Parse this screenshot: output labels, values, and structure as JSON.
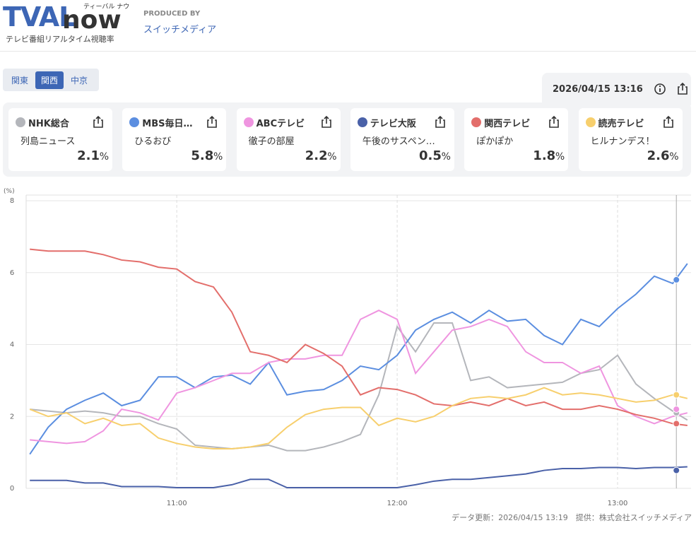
{
  "header": {
    "logo_main": "TVAL",
    "logo_sub": "now",
    "logo_kana": "ティーバル ナウ",
    "tagline": "テレビ番組リアルタイム視聴率",
    "produced_by": "PRODUCED BY",
    "producer": "スイッチメディア"
  },
  "tabs": [
    "関東",
    "関西",
    "中京"
  ],
  "timestamp": "2026/04/15 13:16",
  "cards": [
    {
      "program": "列島ニュース",
      "rating": 2.1,
      "unit": "%"
    },
    {
      "program": "ひるおび",
      "rating": 5.8,
      "unit": "%"
    },
    {
      "program": "徹子の部屋",
      "rating": 2.2,
      "unit": "%"
    },
    {
      "program": "午後のサスペン…",
      "rating": 0.5,
      "unit": "%"
    },
    {
      "program": "ぽかぽか",
      "rating": 1.8,
      "unit": "%"
    },
    {
      "program": "ヒルナンデス！",
      "rating": 2.6,
      "unit": "%"
    }
  ],
  "chart_data": {
    "type": "line",
    "y_label": "(%)",
    "x": [
      "10:20",
      "10:25",
      "10:30",
      "10:35",
      "10:40",
      "10:45",
      "10:50",
      "10:55",
      "11:00",
      "11:05",
      "11:10",
      "11:15",
      "11:20",
      "11:25",
      "11:30",
      "11:35",
      "11:40",
      "11:45",
      "11:50",
      "11:55",
      "12:00",
      "12:05",
      "12:10",
      "12:15",
      "12:20",
      "12:25",
      "12:30",
      "12:35",
      "12:40",
      "12:45",
      "12:50",
      "12:55",
      "13:00",
      "13:05",
      "13:10",
      "13:15",
      "13:19"
    ],
    "xlim": [
      "10:19",
      "13:20"
    ],
    "xticks": [
      "11:00",
      "12:00",
      "13:00"
    ],
    "ylim": [
      0,
      8
    ],
    "yticks": [
      0,
      2,
      4,
      6,
      8
    ],
    "grid": true,
    "series": [
      {
        "name": "NHK総合",
        "color": "#b4b6bb",
        "values": [
          2.2,
          2.15,
          2.1,
          2.15,
          2.1,
          2.0,
          2.0,
          1.8,
          1.65,
          1.2,
          1.15,
          1.1,
          1.15,
          1.2,
          1.05,
          1.05,
          1.15,
          1.3,
          1.5,
          2.6,
          4.5,
          3.8,
          4.6,
          4.6,
          3.0,
          3.1,
          2.8,
          2.85,
          2.9,
          2.95,
          3.2,
          3.3,
          3.7,
          2.9,
          2.5,
          2.15,
          1.9
        ]
      },
      {
        "name": "MBS毎日…",
        "color": "#5b8ee0",
        "values": [
          0.95,
          1.7,
          2.2,
          2.45,
          2.65,
          2.3,
          2.45,
          3.1,
          3.1,
          2.8,
          3.1,
          3.15,
          2.9,
          3.5,
          2.6,
          2.7,
          2.75,
          3.0,
          3.4,
          3.3,
          3.7,
          4.4,
          4.7,
          4.9,
          4.6,
          4.95,
          4.65,
          4.7,
          4.25,
          4.0,
          4.7,
          4.5,
          5.0,
          5.4,
          5.9,
          5.7,
          6.25
        ]
      },
      {
        "name": "ABCテレビ",
        "color": "#ef95e0",
        "values": [
          1.35,
          1.3,
          1.25,
          1.3,
          1.6,
          2.2,
          2.1,
          1.9,
          2.65,
          2.8,
          3.0,
          3.2,
          3.2,
          3.5,
          3.6,
          3.6,
          3.7,
          3.7,
          4.7,
          4.95,
          4.7,
          3.2,
          3.8,
          4.4,
          4.5,
          4.7,
          4.5,
          3.8,
          3.5,
          3.5,
          3.2,
          3.4,
          2.3,
          2.0,
          1.8,
          2.0,
          2.1
        ]
      },
      {
        "name": "テレビ大阪",
        "color": "#4a61a8",
        "values": [
          0.22,
          0.22,
          0.22,
          0.15,
          0.15,
          0.05,
          0.05,
          0.05,
          0.02,
          0.02,
          0.02,
          0.1,
          0.25,
          0.25,
          0.02,
          0.02,
          0.02,
          0.02,
          0.02,
          0.02,
          0.02,
          0.1,
          0.2,
          0.25,
          0.25,
          0.3,
          0.35,
          0.4,
          0.5,
          0.55,
          0.55,
          0.58,
          0.58,
          0.55,
          0.58,
          0.58,
          0.6
        ]
      },
      {
        "name": "関西テレビ",
        "color": "#e36e6b",
        "values": [
          6.65,
          6.6,
          6.6,
          6.6,
          6.5,
          6.35,
          6.3,
          6.15,
          6.1,
          5.75,
          5.6,
          4.9,
          3.8,
          3.7,
          3.5,
          4.0,
          3.75,
          3.4,
          2.6,
          2.8,
          2.75,
          2.6,
          2.35,
          2.3,
          2.4,
          2.3,
          2.5,
          2.3,
          2.4,
          2.2,
          2.2,
          2.3,
          2.2,
          2.05,
          1.95,
          1.8,
          1.75
        ]
      },
      {
        "name": "読売テレビ",
        "color": "#f7cf6d",
        "values": [
          2.2,
          2.0,
          2.1,
          1.8,
          1.95,
          1.75,
          1.8,
          1.4,
          1.25,
          1.15,
          1.1,
          1.1,
          1.15,
          1.25,
          1.7,
          2.05,
          2.2,
          2.25,
          2.25,
          1.75,
          1.95,
          1.85,
          2.0,
          2.3,
          2.5,
          2.55,
          2.5,
          2.6,
          2.8,
          2.6,
          2.65,
          2.6,
          2.5,
          2.4,
          2.45,
          2.6,
          2.5
        ]
      }
    ]
  },
  "footer": {
    "updated": "データ更新：2026/04/15 13:19",
    "provider": "提供：株式会社スイッチメディア"
  }
}
